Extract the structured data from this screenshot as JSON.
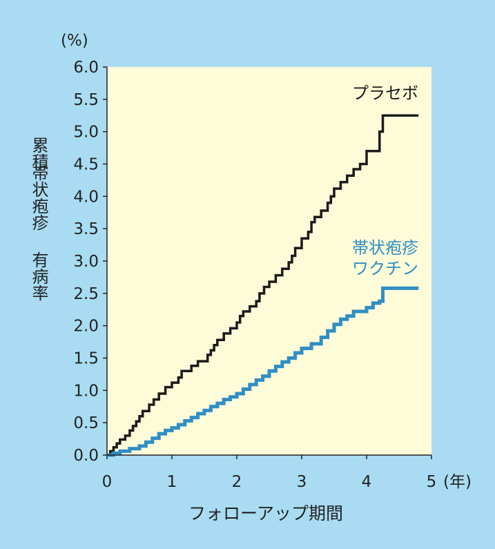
{
  "chart_data": {
    "type": "line",
    "step": true,
    "y_unit": "(%)",
    "x_unit": "(年)",
    "xlabel": "フォローアップ期間",
    "ylabel": "累積 帯状疱疹 有病率",
    "ylabel_lines": [
      "累積",
      "帯状疱疹",
      "有病率"
    ],
    "xlim": [
      0,
      5
    ],
    "ylim": [
      0,
      6.0
    ],
    "x_ticks": [
      "0",
      "1",
      "2",
      "3",
      "4",
      "5"
    ],
    "y_ticks": [
      "0.0",
      "0.5",
      "1.0",
      "1.5",
      "2.0",
      "2.5",
      "3.0",
      "3.5",
      "4.0",
      "4.5",
      "5.0",
      "5.5",
      "6.0"
    ],
    "grid": false,
    "background_color": "#a9dcf2",
    "plot_area_color": "#fefbd9",
    "series": [
      {
        "name": "プラセボ",
        "name_lines": [
          "プラセボ"
        ],
        "color": "#1a1a1a",
        "points": [
          [
            0,
            0
          ],
          [
            0.05,
            0.06
          ],
          [
            0.1,
            0.12
          ],
          [
            0.15,
            0.18
          ],
          [
            0.2,
            0.24
          ],
          [
            0.28,
            0.3
          ],
          [
            0.35,
            0.38
          ],
          [
            0.4,
            0.45
          ],
          [
            0.45,
            0.52
          ],
          [
            0.5,
            0.6
          ],
          [
            0.55,
            0.68
          ],
          [
            0.65,
            0.78
          ],
          [
            0.72,
            0.86
          ],
          [
            0.8,
            0.95
          ],
          [
            0.9,
            1.05
          ],
          [
            1.0,
            1.12
          ],
          [
            1.1,
            1.2
          ],
          [
            1.15,
            1.3
          ],
          [
            1.3,
            1.38
          ],
          [
            1.4,
            1.45
          ],
          [
            1.55,
            1.55
          ],
          [
            1.6,
            1.62
          ],
          [
            1.65,
            1.7
          ],
          [
            1.7,
            1.78
          ],
          [
            1.8,
            1.88
          ],
          [
            1.9,
            1.96
          ],
          [
            2.0,
            2.05
          ],
          [
            2.05,
            2.15
          ],
          [
            2.1,
            2.22
          ],
          [
            2.2,
            2.3
          ],
          [
            2.3,
            2.38
          ],
          [
            2.35,
            2.5
          ],
          [
            2.42,
            2.6
          ],
          [
            2.5,
            2.68
          ],
          [
            2.6,
            2.78
          ],
          [
            2.7,
            2.88
          ],
          [
            2.8,
            2.98
          ],
          [
            2.85,
            3.08
          ],
          [
            2.9,
            3.2
          ],
          [
            3.0,
            3.35
          ],
          [
            3.1,
            3.45
          ],
          [
            3.15,
            3.6
          ],
          [
            3.2,
            3.68
          ],
          [
            3.3,
            3.78
          ],
          [
            3.4,
            3.9
          ],
          [
            3.45,
            4.0
          ],
          [
            3.5,
            4.12
          ],
          [
            3.6,
            4.22
          ],
          [
            3.7,
            4.32
          ],
          [
            3.8,
            4.42
          ],
          [
            3.9,
            4.5
          ],
          [
            4.0,
            4.7
          ],
          [
            4.2,
            5.0
          ],
          [
            4.25,
            5.25
          ],
          [
            4.8,
            5.25
          ]
        ]
      },
      {
        "name": "帯状疱疹ワクチン",
        "name_lines": [
          "帯状疱疹",
          "ワクチン"
        ],
        "color": "#2f8ec4",
        "points": [
          [
            0,
            0
          ],
          [
            0.1,
            0.03
          ],
          [
            0.2,
            0.06
          ],
          [
            0.35,
            0.1
          ],
          [
            0.5,
            0.14
          ],
          [
            0.6,
            0.2
          ],
          [
            0.7,
            0.26
          ],
          [
            0.8,
            0.33
          ],
          [
            0.9,
            0.38
          ],
          [
            1.0,
            0.42
          ],
          [
            1.1,
            0.47
          ],
          [
            1.2,
            0.53
          ],
          [
            1.3,
            0.58
          ],
          [
            1.4,
            0.64
          ],
          [
            1.5,
            0.69
          ],
          [
            1.6,
            0.75
          ],
          [
            1.7,
            0.8
          ],
          [
            1.8,
            0.86
          ],
          [
            1.9,
            0.9
          ],
          [
            2.0,
            0.95
          ],
          [
            2.1,
            1.02
          ],
          [
            2.2,
            1.09
          ],
          [
            2.3,
            1.16
          ],
          [
            2.4,
            1.22
          ],
          [
            2.5,
            1.3
          ],
          [
            2.6,
            1.37
          ],
          [
            2.7,
            1.44
          ],
          [
            2.8,
            1.5
          ],
          [
            2.9,
            1.58
          ],
          [
            3.0,
            1.65
          ],
          [
            3.15,
            1.72
          ],
          [
            3.3,
            1.82
          ],
          [
            3.4,
            1.92
          ],
          [
            3.5,
            2.02
          ],
          [
            3.6,
            2.1
          ],
          [
            3.7,
            2.15
          ],
          [
            3.8,
            2.22
          ],
          [
            4.0,
            2.28
          ],
          [
            4.1,
            2.35
          ],
          [
            4.2,
            2.38
          ],
          [
            4.25,
            2.58
          ],
          [
            4.8,
            2.58
          ]
        ]
      }
    ]
  }
}
